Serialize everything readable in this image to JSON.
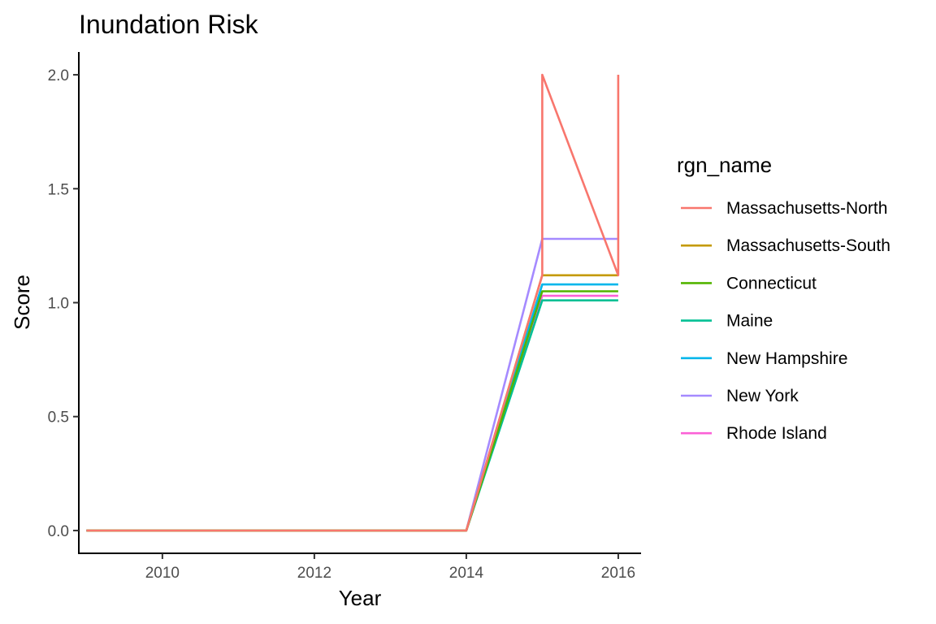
{
  "chart_data": {
    "type": "line",
    "title": "Inundation Risk",
    "xlabel": "Year",
    "ylabel": "Score",
    "xlim": [
      2008.9,
      2016.3
    ],
    "ylim": [
      -0.1,
      2.1
    ],
    "x_ticks": [
      2010,
      2012,
      2014,
      2016
    ],
    "y_ticks": [
      0.0,
      0.5,
      1.0,
      1.5,
      2.0
    ],
    "y_tick_labels": [
      "0.0",
      "0.5",
      "1.0",
      "1.5",
      "2.0"
    ],
    "grid": false,
    "legend": {
      "title": "rgn_name",
      "placement": "right"
    },
    "series": [
      {
        "name": "Massachusetts-North",
        "color": "#F8766D",
        "points": [
          [
            2009,
            0
          ],
          [
            2014,
            0
          ],
          [
            2015,
            1.12
          ],
          [
            2015,
            2.0
          ],
          [
            2016,
            1.12
          ],
          [
            2016,
            2.0
          ]
        ]
      },
      {
        "name": "Massachusetts-South",
        "color": "#C49A00",
        "points": [
          [
            2009,
            0
          ],
          [
            2014,
            0
          ],
          [
            2015,
            1.12
          ],
          [
            2016,
            1.12
          ]
        ]
      },
      {
        "name": "Connecticut",
        "color": "#53B400",
        "points": [
          [
            2009,
            0
          ],
          [
            2014,
            0
          ],
          [
            2015,
            1.05
          ],
          [
            2016,
            1.05
          ]
        ]
      },
      {
        "name": "Maine",
        "color": "#00C094",
        "points": [
          [
            2009,
            0
          ],
          [
            2014,
            0
          ],
          [
            2015,
            1.01
          ],
          [
            2016,
            1.01
          ]
        ]
      },
      {
        "name": "New Hampshire",
        "color": "#00B6EB",
        "points": [
          [
            2009,
            0
          ],
          [
            2014,
            0
          ],
          [
            2015,
            1.08
          ],
          [
            2016,
            1.08
          ]
        ]
      },
      {
        "name": "New York",
        "color": "#A58AFF",
        "points": [
          [
            2009,
            0
          ],
          [
            2014,
            0
          ],
          [
            2015,
            1.28
          ],
          [
            2016,
            1.28
          ]
        ]
      },
      {
        "name": "Rhode Island",
        "color": "#FB61D7",
        "points": [
          [
            2009,
            0
          ],
          [
            2014,
            0
          ],
          [
            2015,
            1.03
          ],
          [
            2016,
            1.03
          ]
        ]
      }
    ]
  }
}
